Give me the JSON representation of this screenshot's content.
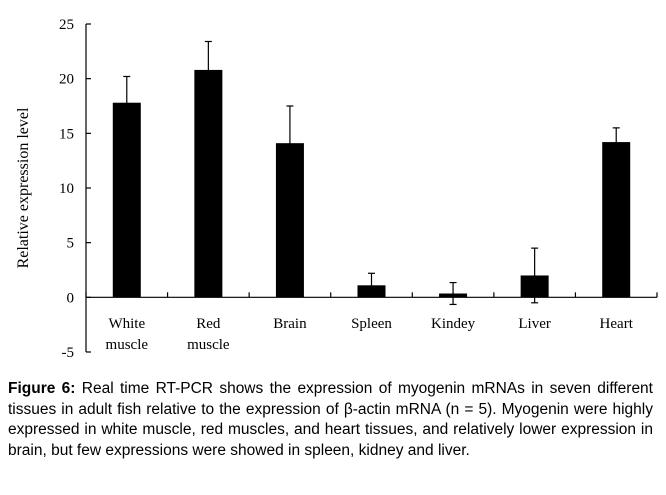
{
  "chart_data": {
    "type": "bar",
    "categories": [
      [
        "White",
        "muscle"
      ],
      [
        "Red",
        "muscle"
      ],
      [
        "Brain"
      ],
      [
        "Spleen"
      ],
      [
        "Kindey"
      ],
      [
        "Liver"
      ],
      [
        "Heart"
      ]
    ],
    "values": [
      17.8,
      20.8,
      14.1,
      1.1,
      0.35,
      2.0,
      14.2
    ],
    "errors": [
      2.4,
      2.6,
      3.4,
      1.1,
      1.0,
      2.5,
      1.3
    ],
    "ylabel": "Relative expression level",
    "ylim": [
      -5,
      25
    ],
    "yticks": [
      -5,
      0,
      5,
      10,
      15,
      20,
      25
    ],
    "bar_color": "#000000",
    "grid": false
  },
  "caption": {
    "label": "Figure 6:",
    "text": " Real time RT-PCR shows the expression of myogenin mRNAs in seven different tissues in adult fish relative to the expression of β-actin mRNA (n = 5). Myogenin were highly expressed in white muscle, red muscles, and heart tissues, and relatively lower expression in brain, but few expressions were showed in spleen, kidney and liver."
  }
}
